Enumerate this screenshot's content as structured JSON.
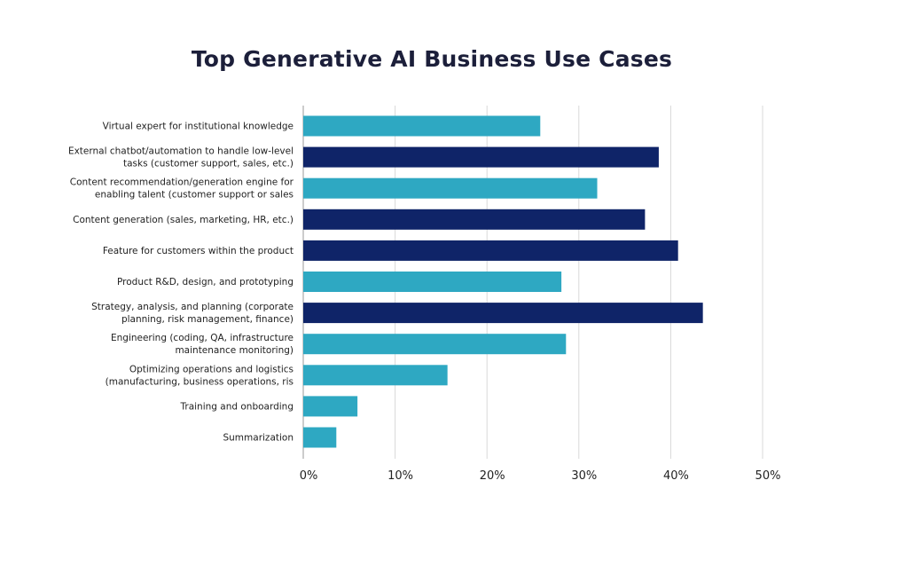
{
  "chart_data": {
    "type": "bar",
    "orientation": "horizontal",
    "title": "Top Generative AI Business Use Cases",
    "categories": [
      [
        "Virtual expert for institutional knowledge"
      ],
      [
        "External chatbot/automation to handle low-level",
        "tasks (customer support, sales, etc.)"
      ],
      [
        "Content recommendation/generation engine for",
        "enabling talent (customer support or sales"
      ],
      [
        "Content generation (sales, marketing, HR, etc.)"
      ],
      [
        "Feature for customers within the product"
      ],
      [
        "Product R&D, design, and prototyping"
      ],
      [
        "Strategy, analysis, and planning (corporate",
        "planning, risk management, finance)"
      ],
      [
        "Engineering (coding, QA, infrastructure",
        "maintenance monitoring)"
      ],
      [
        "Optimizing operations and logistics",
        "(manufacturing, business operations, ris"
      ],
      [
        "Training and onboarding"
      ],
      [
        "Summarization"
      ]
    ],
    "values": [
      25.8,
      38.7,
      32.0,
      37.2,
      40.8,
      28.1,
      43.5,
      28.6,
      15.7,
      5.9,
      3.6
    ],
    "bar_colors": [
      "#2ea8c2",
      "#0f2468",
      "#2ea8c2",
      "#0f2468",
      "#0f2468",
      "#2ea8c2",
      "#0f2468",
      "#2ea8c2",
      "#2ea8c2",
      "#2ea8c2",
      "#2ea8c2"
    ],
    "xlim": [
      0,
      50
    ],
    "xticks": [
      0,
      10,
      20,
      30,
      40,
      50
    ],
    "xtick_labels": [
      "0%",
      "10%",
      "20%",
      "30%",
      "40%",
      "50%"
    ],
    "grid": true,
    "legend": "none"
  }
}
